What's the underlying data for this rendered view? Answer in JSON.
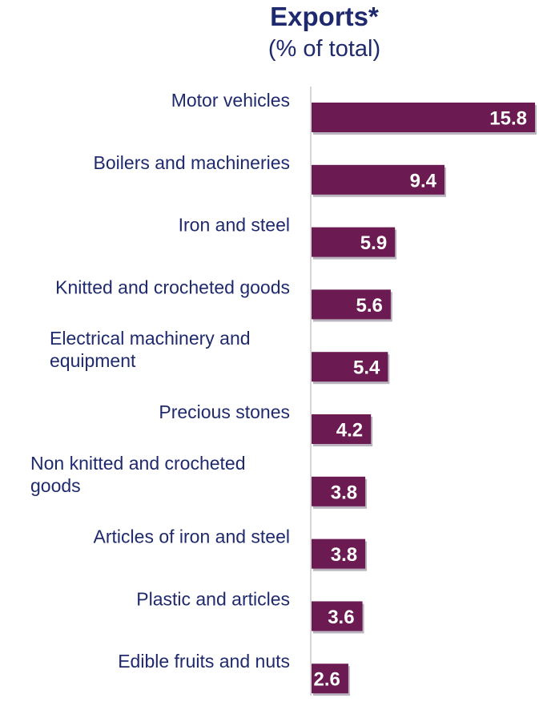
{
  "chart_data": {
    "type": "bar",
    "orientation": "horizontal",
    "title": "Exports*",
    "subtitle": "(% of total)",
    "categories": [
      [
        "Motor vehicles"
      ],
      [
        "Boilers and machineries"
      ],
      [
        "Iron and steel"
      ],
      [
        "Knitted and crocheted goods"
      ],
      [
        "Electrical machinery and",
        "equipment"
      ],
      [
        "Precious stones"
      ],
      [
        "Non knitted and crocheted",
        "goods"
      ],
      [
        "Articles of iron and steel"
      ],
      [
        "Plastic and articles"
      ],
      [
        "Edible fruits and nuts"
      ]
    ],
    "values": [
      15.8,
      9.4,
      5.9,
      5.6,
      5.4,
      4.2,
      3.8,
      3.8,
      3.6,
      2.6
    ],
    "data_labels": [
      "15.8",
      "9.4",
      "5.9",
      "5.6",
      "5.4",
      "4.2",
      "3.8",
      "3.8",
      "3.6",
      "2.6"
    ],
    "colors": {
      "bar": "#6B1A52",
      "bar_shadow": "#B9B4BE",
      "axis": "#C8C8C8",
      "text": "#1F2A6E"
    },
    "grid": false,
    "legend": "none"
  }
}
